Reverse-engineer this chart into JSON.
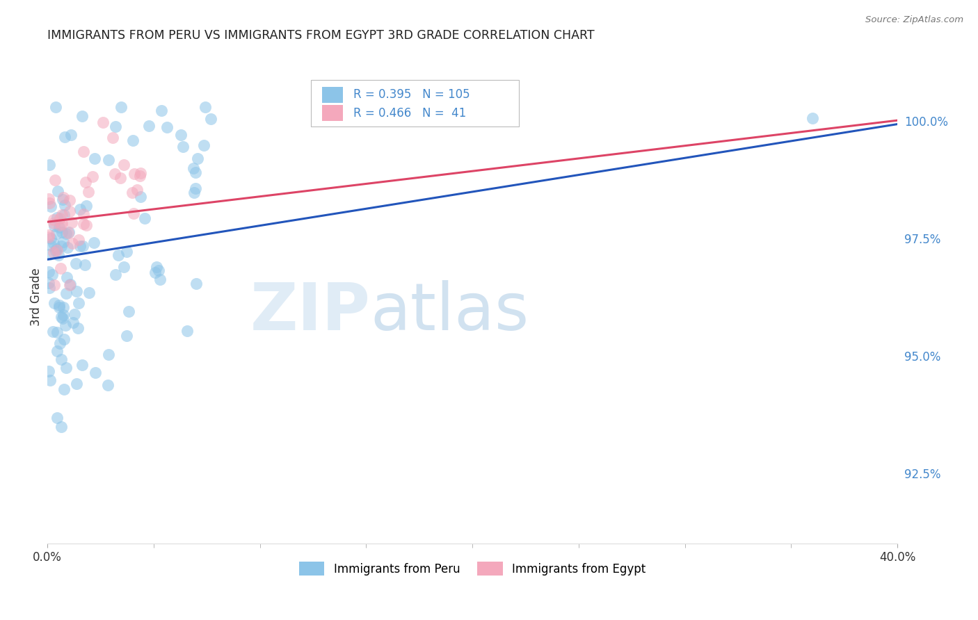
{
  "title": "IMMIGRANTS FROM PERU VS IMMIGRANTS FROM EGYPT 3RD GRADE CORRELATION CHART",
  "source": "Source: ZipAtlas.com",
  "ylabel": "3rd Grade",
  "ylabel_right_ticks": [
    100.0,
    97.5,
    95.0,
    92.5
  ],
  "ylabel_right_labels": [
    "100.0%",
    "97.5%",
    "95.0%",
    "92.5%"
  ],
  "xlim": [
    0.0,
    40.0
  ],
  "ylim_bottom": 91.0,
  "ylim_top": 101.5,
  "peru_R": 0.395,
  "peru_N": 105,
  "egypt_R": 0.466,
  "egypt_N": 41,
  "peru_color": "#8CC4E8",
  "egypt_color": "#F4A8BC",
  "peru_line_color": "#2255BB",
  "egypt_line_color": "#DD4466",
  "legend_peru": "Immigrants from Peru",
  "legend_egypt": "Immigrants from Egypt",
  "watermark_zip": "ZIP",
  "watermark_atlas": "atlas",
  "title_color": "#222222",
  "source_color": "#777777",
  "axis_label_color": "#333333",
  "right_tick_color": "#4488CC",
  "grid_color": "#CCCCCC",
  "background_color": "#FFFFFF"
}
